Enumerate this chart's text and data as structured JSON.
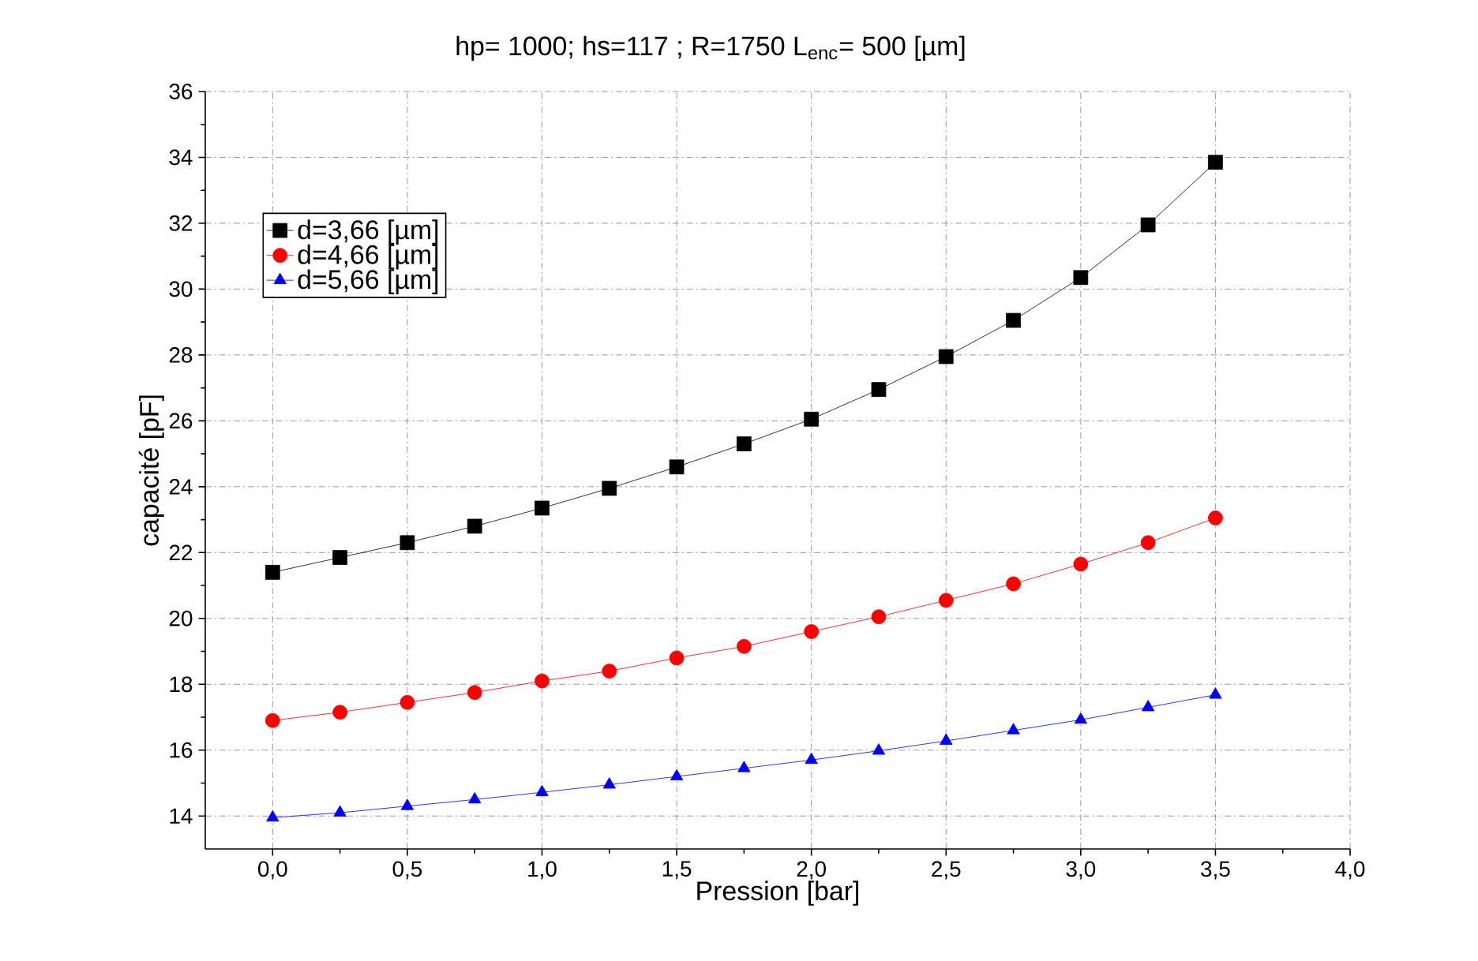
{
  "chart_data": {
    "type": "line",
    "title": "hp= 1000; hs=117 ; R=1750  L$_{enc}$= 500  [µm]",
    "xlabel": "Pression [bar]",
    "ylabel": "capacité  [pF]",
    "x": [
      0,
      0.25,
      0.5,
      0.75,
      1,
      1.25,
      1.5,
      1.75,
      2,
      2.25,
      2.5,
      2.75,
      3,
      3.25,
      3.5
    ],
    "series": [
      {
        "name": "d=3,66 [µm]",
        "color": "#000000",
        "marker": "square",
        "values": [
          21.4,
          21.85,
          22.3,
          22.8,
          23.35,
          23.95,
          24.6,
          25.3,
          26.05,
          26.95,
          27.95,
          29.05,
          30.35,
          31.95,
          33.85
        ]
      },
      {
        "name": "d=4,66 [µm]",
        "color": "#ff0000",
        "marker": "circle",
        "values": [
          16.9,
          17.15,
          17.45,
          17.75,
          18.1,
          18.4,
          18.8,
          19.15,
          19.6,
          20.05,
          20.55,
          21.05,
          21.65,
          22.3,
          23.05
        ]
      },
      {
        "name": "d=5,66 [µm]",
        "color": "#0000ff",
        "marker": "triangle",
        "values": [
          13.95,
          14.1,
          14.3,
          14.5,
          14.72,
          14.95,
          15.2,
          15.45,
          15.7,
          15.98,
          16.28,
          16.6,
          16.92,
          17.3,
          17.68
        ]
      }
    ],
    "xlim": [
      -0.25,
      4.0
    ],
    "ylim": [
      13,
      36
    ],
    "xticks": [
      {
        "value": 0,
        "label": "0,0"
      },
      {
        "value": 0.5,
        "label": "0,5"
      },
      {
        "value": 1,
        "label": "1,0"
      },
      {
        "value": 1.5,
        "label": "1,5"
      },
      {
        "value": 2,
        "label": "2,0"
      },
      {
        "value": 2.5,
        "label": "2,5"
      },
      {
        "value": 3,
        "label": "3,0"
      },
      {
        "value": 3.5,
        "label": "3,5"
      },
      {
        "value": 4,
        "label": "4,0"
      }
    ],
    "yticks": [
      14,
      16,
      18,
      20,
      22,
      24,
      26,
      28,
      30,
      32,
      34,
      36
    ],
    "grid": true,
    "legend": "top left",
    "line_style": "solid"
  }
}
